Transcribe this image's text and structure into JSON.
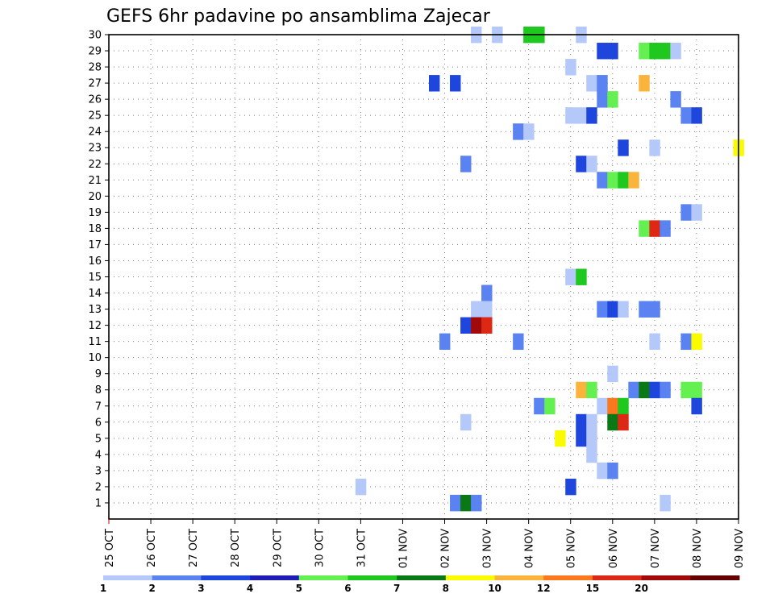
{
  "chart_data": {
    "type": "heatmap",
    "title": "GEFS 6hr padavine po ansamblima Zajecar",
    "xlabel": "",
    "ylabel": "",
    "x_ticks": [
      "25 OCT",
      "26 OCT",
      "27 OCT",
      "28 OCT",
      "29 OCT",
      "30 OCT",
      "31 OCT",
      "01 NOV",
      "02 NOV",
      "03 NOV",
      "04 NOV",
      "05 NOV",
      "06 NOV",
      "07 NOV",
      "08 NOV",
      "09 NOV"
    ],
    "y_ticks": [
      "1",
      "2",
      "3",
      "4",
      "5",
      "6",
      "7",
      "8",
      "9",
      "10",
      "11",
      "12",
      "13",
      "14",
      "15",
      "16",
      "17",
      "18",
      "19",
      "20",
      "21",
      "22",
      "23",
      "24",
      "25",
      "26",
      "27",
      "28",
      "29",
      "30"
    ],
    "x_range": [
      "25 OCT 00Z",
      "09 NOV 00Z"
    ],
    "y_range": [
      0,
      30
    ],
    "time_step_hours": 6,
    "grid": true,
    "legend_position": "bottom",
    "legend": {
      "labels": [
        "1",
        "2",
        "3",
        "4",
        "5",
        "6",
        "7",
        "8",
        "10",
        "12",
        "15",
        "20"
      ],
      "colors": [
        "#b4c8fa",
        "#5a82f0",
        "#1e46dc",
        "#1e1eb4",
        "#64f050",
        "#1ec81e",
        "#0a7814",
        "#fafa00",
        "#fab43c",
        "#fa781e",
        "#dc2814",
        "#a00a0a",
        "#640000"
      ]
    },
    "cells": [
      {
        "member": 30,
        "time": "02 NOV 18Z",
        "bin": 0
      },
      {
        "member": 30,
        "time": "03 NOV 06Z",
        "bin": 0
      },
      {
        "member": 30,
        "time": "04 NOV 00Z",
        "bin": 5
      },
      {
        "member": 30,
        "time": "04 NOV 06Z",
        "bin": 5
      },
      {
        "member": 30,
        "time": "05 NOV 06Z",
        "bin": 0
      },
      {
        "member": 29,
        "time": "05 NOV 18Z",
        "bin": 2
      },
      {
        "member": 29,
        "time": "06 NOV 00Z",
        "bin": 2
      },
      {
        "member": 29,
        "time": "06 NOV 18Z",
        "bin": 4
      },
      {
        "member": 29,
        "time": "07 NOV 00Z",
        "bin": 5
      },
      {
        "member": 29,
        "time": "07 NOV 06Z",
        "bin": 5
      },
      {
        "member": 29,
        "time": "07 NOV 12Z",
        "bin": 0
      },
      {
        "member": 28,
        "time": "05 NOV 00Z",
        "bin": 0
      },
      {
        "member": 27,
        "time": "01 NOV 18Z",
        "bin": 2
      },
      {
        "member": 27,
        "time": "02 NOV 06Z",
        "bin": 2
      },
      {
        "member": 27,
        "time": "05 NOV 12Z",
        "bin": 0
      },
      {
        "member": 27,
        "time": "05 NOV 18Z",
        "bin": 1
      },
      {
        "member": 27,
        "time": "06 NOV 18Z",
        "bin": 8
      },
      {
        "member": 26,
        "time": "05 NOV 18Z",
        "bin": 1
      },
      {
        "member": 26,
        "time": "06 NOV 00Z",
        "bin": 4
      },
      {
        "member": 26,
        "time": "07 NOV 12Z",
        "bin": 1
      },
      {
        "member": 25,
        "time": "05 NOV 00Z",
        "bin": 0
      },
      {
        "member": 25,
        "time": "05 NOV 06Z",
        "bin": 0
      },
      {
        "member": 25,
        "time": "05 NOV 12Z",
        "bin": 2
      },
      {
        "member": 25,
        "time": "07 NOV 18Z",
        "bin": 1
      },
      {
        "member": 25,
        "time": "08 NOV 00Z",
        "bin": 2
      },
      {
        "member": 24,
        "time": "03 NOV 18Z",
        "bin": 1
      },
      {
        "member": 24,
        "time": "04 NOV 00Z",
        "bin": 0
      },
      {
        "member": 23,
        "time": "06 NOV 06Z",
        "bin": 2
      },
      {
        "member": 23,
        "time": "07 NOV 00Z",
        "bin": 0
      },
      {
        "member": 23,
        "time": "09 NOV 00Z",
        "bin": 7
      },
      {
        "member": 22,
        "time": "02 NOV 12Z",
        "bin": 1
      },
      {
        "member": 22,
        "time": "05 NOV 06Z",
        "bin": 2
      },
      {
        "member": 22,
        "time": "05 NOV 12Z",
        "bin": 0
      },
      {
        "member": 21,
        "time": "05 NOV 18Z",
        "bin": 1
      },
      {
        "member": 21,
        "time": "06 NOV 00Z",
        "bin": 4
      },
      {
        "member": 21,
        "time": "06 NOV 06Z",
        "bin": 5
      },
      {
        "member": 21,
        "time": "06 NOV 12Z",
        "bin": 8
      },
      {
        "member": 19,
        "time": "07 NOV 18Z",
        "bin": 1
      },
      {
        "member": 19,
        "time": "08 NOV 00Z",
        "bin": 0
      },
      {
        "member": 18,
        "time": "06 NOV 18Z",
        "bin": 4
      },
      {
        "member": 18,
        "time": "07 NOV 00Z",
        "bin": 10
      },
      {
        "member": 18,
        "time": "07 NOV 06Z",
        "bin": 1
      },
      {
        "member": 15,
        "time": "05 NOV 00Z",
        "bin": 0
      },
      {
        "member": 15,
        "time": "05 NOV 06Z",
        "bin": 5
      },
      {
        "member": 14,
        "time": "03 NOV 00Z",
        "bin": 1
      },
      {
        "member": 13,
        "time": "02 NOV 18Z",
        "bin": 0
      },
      {
        "member": 13,
        "time": "03 NOV 00Z",
        "bin": 0
      },
      {
        "member": 13,
        "time": "05 NOV 18Z",
        "bin": 1
      },
      {
        "member": 13,
        "time": "06 NOV 00Z",
        "bin": 2
      },
      {
        "member": 13,
        "time": "06 NOV 06Z",
        "bin": 0
      },
      {
        "member": 13,
        "time": "06 NOV 18Z",
        "bin": 1
      },
      {
        "member": 13,
        "time": "07 NOV 00Z",
        "bin": 1
      },
      {
        "member": 12,
        "time": "02 NOV 12Z",
        "bin": 2
      },
      {
        "member": 12,
        "time": "02 NOV 18Z",
        "bin": 11
      },
      {
        "member": 12,
        "time": "03 NOV 00Z",
        "bin": 10
      },
      {
        "member": 11,
        "time": "02 NOV 00Z",
        "bin": 1
      },
      {
        "member": 11,
        "time": "03 NOV 18Z",
        "bin": 1
      },
      {
        "member": 11,
        "time": "07 NOV 00Z",
        "bin": 0
      },
      {
        "member": 11,
        "time": "07 NOV 18Z",
        "bin": 1
      },
      {
        "member": 11,
        "time": "08 NOV 00Z",
        "bin": 7
      },
      {
        "member": 9,
        "time": "06 NOV 00Z",
        "bin": 0
      },
      {
        "member": 8,
        "time": "05 NOV 06Z",
        "bin": 8
      },
      {
        "member": 8,
        "time": "05 NOV 12Z",
        "bin": 4
      },
      {
        "member": 8,
        "time": "06 NOV 12Z",
        "bin": 1
      },
      {
        "member": 8,
        "time": "06 NOV 18Z",
        "bin": 6
      },
      {
        "member": 8,
        "time": "07 NOV 00Z",
        "bin": 2
      },
      {
        "member": 8,
        "time": "07 NOV 06Z",
        "bin": 1
      },
      {
        "member": 8,
        "time": "07 NOV 18Z",
        "bin": 4
      },
      {
        "member": 8,
        "time": "08 NOV 00Z",
        "bin": 4
      },
      {
        "member": 7,
        "time": "04 NOV 06Z",
        "bin": 1
      },
      {
        "member": 7,
        "time": "04 NOV 12Z",
        "bin": 4
      },
      {
        "member": 7,
        "time": "05 NOV 18Z",
        "bin": 0
      },
      {
        "member": 7,
        "time": "06 NOV 00Z",
        "bin": 9
      },
      {
        "member": 7,
        "time": "06 NOV 06Z",
        "bin": 5
      },
      {
        "member": 7,
        "time": "08 NOV 00Z",
        "bin": 2
      },
      {
        "member": 6,
        "time": "02 NOV 12Z",
        "bin": 0
      },
      {
        "member": 6,
        "time": "05 NOV 06Z",
        "bin": 2
      },
      {
        "member": 6,
        "time": "05 NOV 12Z",
        "bin": 0
      },
      {
        "member": 6,
        "time": "06 NOV 00Z",
        "bin": 6
      },
      {
        "member": 6,
        "time": "06 NOV 06Z",
        "bin": 10
      },
      {
        "member": 5,
        "time": "04 NOV 18Z",
        "bin": 7
      },
      {
        "member": 5,
        "time": "05 NOV 06Z",
        "bin": 2
      },
      {
        "member": 5,
        "time": "05 NOV 12Z",
        "bin": 0
      },
      {
        "member": 4,
        "time": "05 NOV 12Z",
        "bin": 0
      },
      {
        "member": 3,
        "time": "05 NOV 18Z",
        "bin": 0
      },
      {
        "member": 3,
        "time": "06 NOV 00Z",
        "bin": 1
      },
      {
        "member": 2,
        "time": "31 OCT 00Z",
        "bin": 0
      },
      {
        "member": 2,
        "time": "05 NOV 00Z",
        "bin": 2
      },
      {
        "member": 1,
        "time": "02 NOV 06Z",
        "bin": 1
      },
      {
        "member": 1,
        "time": "02 NOV 12Z",
        "bin": 6
      },
      {
        "member": 1,
        "time": "02 NOV 18Z",
        "bin": 1
      },
      {
        "member": 1,
        "time": "07 NOV 06Z",
        "bin": 0
      }
    ]
  }
}
